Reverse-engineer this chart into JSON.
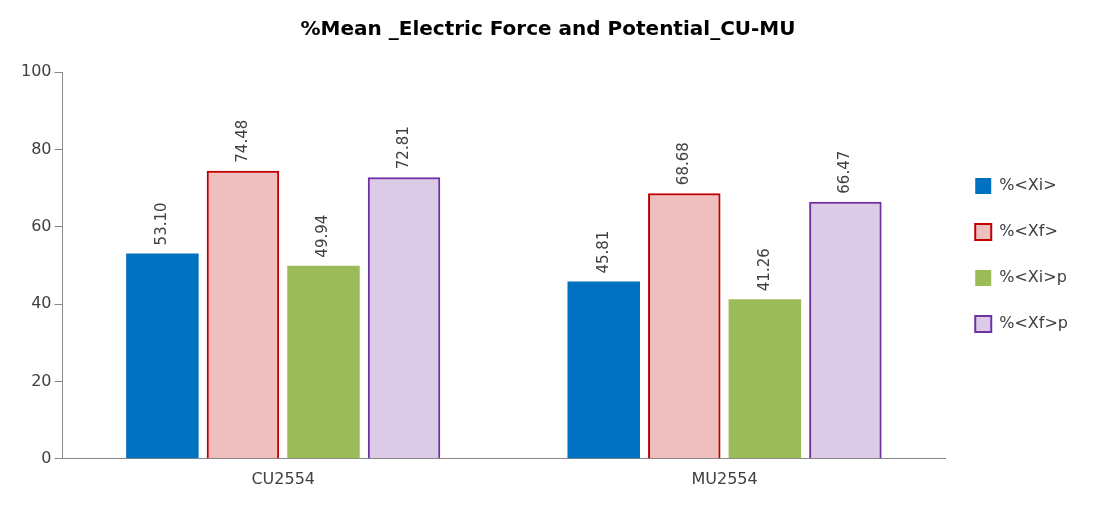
{
  "chart_data": {
    "type": "bar",
    "title": "%Mean _Electric Force and Potential_CU-MU",
    "categories": [
      "CU2554",
      "MU2554"
    ],
    "series": [
      {
        "name": "%<Xi>",
        "color": "#0070c0",
        "values": [
          53.1,
          45.81
        ],
        "value_labels": [
          "53.10",
          "45.81"
        ]
      },
      {
        "name": "%<Xf>",
        "color": "#c00000",
        "values": [
          74.48,
          68.68
        ],
        "value_labels": [
          "74.48",
          "68.68"
        ]
      },
      {
        "name": "%<Xi>p",
        "color": "#9bbb59",
        "values": [
          49.94,
          41.26
        ],
        "value_labels": [
          "49.94",
          "41.26"
        ]
      },
      {
        "name": "%<Xf>p",
        "color": "#7030a0",
        "values": [
          72.81,
          66.47
        ],
        "value_labels": [
          "72.81",
          "66.47"
        ]
      }
    ],
    "ylim": [
      0,
      100
    ],
    "yticks": [
      0,
      20,
      40,
      60,
      80,
      100
    ],
    "grid": false,
    "legend": "right"
  }
}
